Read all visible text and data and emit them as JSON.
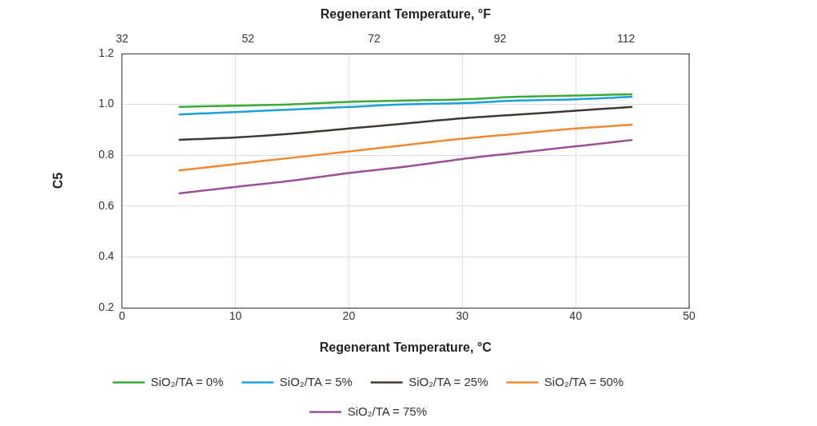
{
  "chart_data": {
    "type": "line",
    "xlabel": "Regenerant Temperature, °C",
    "x2label": "Regenerant Temperature, °F",
    "ylabel": "C5",
    "x": [
      5,
      10,
      15,
      20,
      25,
      30,
      35,
      40,
      45
    ],
    "xlim": [
      0,
      50
    ],
    "xticks": [
      0,
      10,
      20,
      30,
      40,
      50
    ],
    "x2lim": [
      32,
      122
    ],
    "x2ticks": [
      32,
      52,
      72,
      92,
      112
    ],
    "ylim": [
      0.2,
      1.2
    ],
    "yticks": [
      0.2,
      0.4,
      0.6,
      0.8,
      {
        "value": 1,
        "label": "1.0"
      },
      1.2
    ],
    "grid": true,
    "legend": "bottom",
    "marker": "none",
    "line_style": "solid",
    "series": [
      {
        "name": "SiO₂/TA = 0%",
        "color": "#3aaa35",
        "values": [
          0.99,
          0.995,
          1.0,
          1.01,
          1.015,
          1.02,
          1.03,
          1.035,
          1.04
        ]
      },
      {
        "name": "SiO₂/TA = 5%",
        "color": "#1ba1d8",
        "values": [
          0.96,
          0.97,
          0.98,
          0.99,
          1.0,
          1.005,
          1.015,
          1.02,
          1.03
        ]
      },
      {
        "name": "SiO₂/TA = 25%",
        "color": "#3d3935",
        "values": [
          0.86,
          0.87,
          0.885,
          0.905,
          0.925,
          0.945,
          0.96,
          0.975,
          0.99
        ]
      },
      {
        "name": "SiO₂/TA = 50%",
        "color": "#f0892f",
        "values": [
          0.74,
          0.765,
          0.79,
          0.815,
          0.84,
          0.865,
          0.885,
          0.905,
          0.92
        ]
      },
      {
        "name": "SiO₂/TA = 75%",
        "color": "#9b4f96",
        "values": [
          0.65,
          0.675,
          0.7,
          0.73,
          0.755,
          0.785,
          0.81,
          0.835,
          0.86
        ]
      }
    ]
  }
}
